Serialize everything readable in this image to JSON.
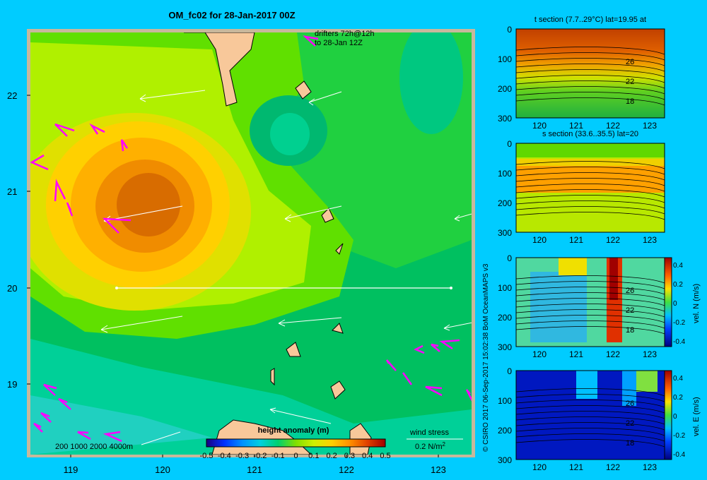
{
  "main_map": {
    "title": "OM_fc02 for 28-Jan-2017 00Z",
    "drifters_line1": "drifters 72h@12h",
    "drifters_line2": "to 28-Jan 12Z",
    "lat_ticks": [
      "22",
      "21",
      "20",
      "19"
    ],
    "lon_ticks": [
      "119",
      "120",
      "121",
      "122",
      "123"
    ],
    "colorbar_title": "height anomaly (m)",
    "colorbar_ticks": [
      "-0.5",
      "-0.4",
      "-0.3",
      "-0.2",
      "-0.1",
      "0",
      "0.1",
      "0.2",
      "0.3",
      "0.4",
      "0.5"
    ],
    "bathy_label": "200  1000  2000  4000m",
    "wind_stress_label": "wind stress",
    "wind_stress_value": "0.2 N/m",
    "wind_stress_sup": "2"
  },
  "credit": "© CSIRO 2017   06-Sep-2017 15:02:38 BoM OceanMAPS v3",
  "panels": [
    {
      "title": "t section (7.7..29°C) lat=19.95 at",
      "y_ticks": [
        "0",
        "100",
        "200",
        "300"
      ],
      "x_ticks": [
        "120",
        "121",
        "122",
        "123"
      ],
      "contour_labels": [
        "26",
        "22",
        "18"
      ],
      "colorbar": null
    },
    {
      "title": "s section (33.6..35.5) lat=20",
      "y_ticks": [
        "0",
        "100",
        "200",
        "300"
      ],
      "x_ticks": [
        "120",
        "121",
        "122",
        "123"
      ],
      "contour_labels": [],
      "colorbar": null
    },
    {
      "title": "",
      "y_ticks": [
        "0",
        "100",
        "200",
        "300"
      ],
      "x_ticks": [
        "120",
        "121",
        "122",
        "123"
      ],
      "contour_labels": [
        "26",
        "22",
        "18"
      ],
      "colorbar": {
        "label": "vel. N (m/s)",
        "ticks": [
          "0.4",
          "0.2",
          "0",
          "-0.2",
          "-0.4"
        ]
      }
    },
    {
      "title": "",
      "y_ticks": [
        "0",
        "100",
        "200",
        "300"
      ],
      "x_ticks": [
        "120",
        "121",
        "122",
        "123"
      ],
      "contour_labels": [
        "26",
        "22",
        "18"
      ],
      "colorbar": {
        "label": "vel. E (m/s)",
        "ticks": [
          "0.4",
          "0.2",
          "0",
          "-0.2",
          "-0.4"
        ]
      }
    }
  ],
  "colors": {
    "background": "#00ccff",
    "frame": "#c8b89c",
    "land": "#f8c89a",
    "drifter": "#ff00ff"
  }
}
